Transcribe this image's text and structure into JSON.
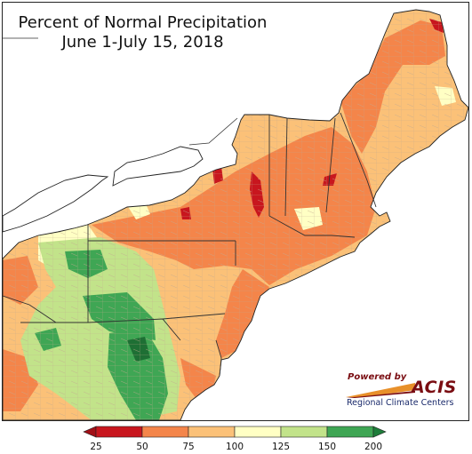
{
  "map": {
    "title_line1": "Percent of Normal Precipitation",
    "title_line2": "June 1-July 15, 2018"
  },
  "credit": {
    "powered_by": "Powered by",
    "logo_text": "ACIS",
    "subtitle": "Regional Climate Centers",
    "text_color": "#7a0d12",
    "swoosh_color": "#e8902a"
  },
  "legend": {
    "ticks": [
      "25",
      "50",
      "75",
      "100",
      "125",
      "150",
      "200"
    ],
    "bins": [
      {
        "from": 25,
        "to": 50,
        "color": "#c8161e"
      },
      {
        "from": 50,
        "to": 75,
        "color": "#f4854a"
      },
      {
        "from": 75,
        "to": 100,
        "color": "#fbc178"
      },
      {
        "from": 100,
        "to": 125,
        "color": "#ffffc4"
      },
      {
        "from": 125,
        "to": 150,
        "color": "#c2e38a"
      },
      {
        "from": 150,
        "to": 200,
        "color": "#3fa654"
      }
    ],
    "low_arrow_color": "#a10f16",
    "high_arrow_color": "#1e7d3a"
  },
  "colors": {
    "water": "#ffffff",
    "outside": "#ffffff",
    "border": "#333333",
    "county_line": "#b9a189"
  }
}
